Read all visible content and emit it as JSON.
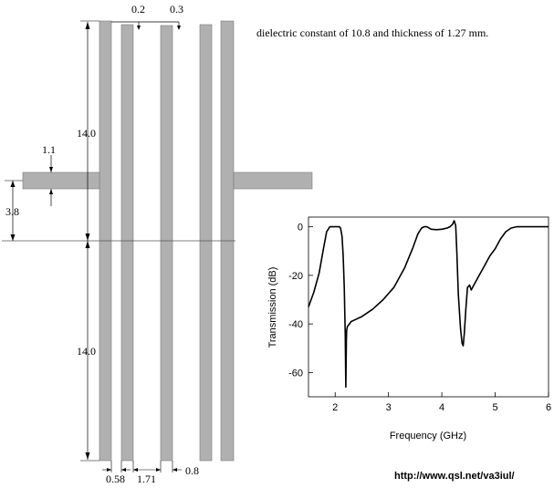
{
  "description_text": "dielectric constant of 10.8 and thickness of 1.27 mm.",
  "footer_url": "http://www.qsl.net/va3iul/",
  "colors": {
    "metal": "#b0b0b0",
    "metal_edge": "#7a7a7a",
    "line": "#000000"
  },
  "dimensions": {
    "gap_top_1": "0.2",
    "gap_top_2": "0.3",
    "upper_length": "14.0",
    "lower_length": "14.0",
    "feed_width": "1.1",
    "feed_offset": "3.8",
    "bottom_1": "0.58",
    "bottom_2": "1.71",
    "bottom_3": "0.8"
  },
  "chart_data": {
    "type": "line",
    "title": "",
    "xlabel": "Frequency (GHz)",
    "ylabel": "Transmission (dB)",
    "xlim": [
      1.5,
      6
    ],
    "ylim": [
      -70,
      4
    ],
    "xticks": [
      2,
      3,
      4,
      5,
      6
    ],
    "yticks": [
      0,
      -20,
      -40,
      -60
    ],
    "grid": false,
    "series": [
      {
        "x": [
          1.5,
          1.6,
          1.7,
          1.78,
          1.84,
          1.9,
          2.0,
          2.08,
          2.1,
          2.13,
          2.15,
          2.17,
          2.19,
          2.2,
          2.21,
          2.215,
          2.22,
          2.23,
          2.25,
          2.3,
          2.4,
          2.5,
          2.7,
          2.9,
          3.1,
          3.3,
          3.45,
          3.55,
          3.62,
          3.67,
          3.72,
          3.8,
          3.9,
          4.0,
          4.1,
          4.15,
          4.2,
          4.23,
          4.26,
          4.28,
          4.31,
          4.35,
          4.38,
          4.4,
          4.42,
          4.45,
          4.48,
          4.52,
          4.55,
          4.6,
          4.7,
          4.8,
          4.9,
          5.0,
          5.1,
          5.2,
          5.3,
          5.4,
          5.5,
          5.6,
          5.7,
          5.8,
          5.9,
          6.0
        ],
        "y": [
          -33,
          -27,
          -19,
          -9,
          -2,
          0,
          0,
          0,
          -0.5,
          -4,
          -12,
          -25,
          -45,
          -66,
          -47,
          -43,
          -42,
          -41,
          -40.5,
          -39,
          -38,
          -37,
          -34,
          -30,
          -25,
          -17,
          -9,
          -3,
          -0.5,
          0,
          0,
          -1,
          -1.2,
          -1,
          -0.5,
          0,
          1,
          2.5,
          0.5,
          -10,
          -28,
          -42,
          -48,
          -49,
          -44,
          -34,
          -25,
          -24,
          -26,
          -24,
          -20,
          -16,
          -12,
          -9,
          -5,
          -2,
          -0.5,
          0,
          0,
          0,
          0,
          0,
          0,
          0
        ]
      }
    ]
  }
}
